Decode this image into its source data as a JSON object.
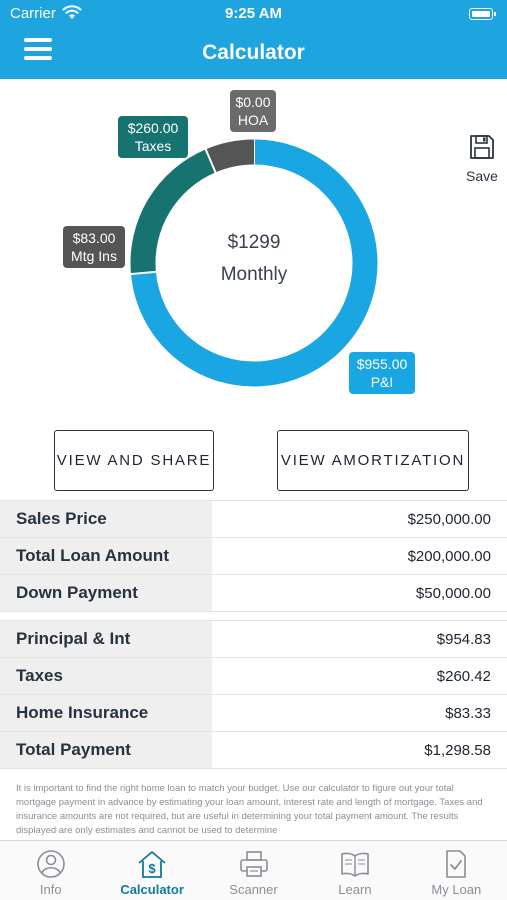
{
  "status": {
    "carrier": "Carrier",
    "time": "9:25 AM"
  },
  "nav": {
    "title": "Calculator"
  },
  "colors": {
    "header": "#1ea4df",
    "pi": "#1aa6e2",
    "taxes": "#16736f",
    "mtg_ins": "#555555",
    "hoa": "#6b6b6b"
  },
  "chart_data": {
    "type": "pie",
    "categories": [
      "P&I",
      "HOA",
      "Taxes",
      "Mtg Ins"
    ],
    "values": [
      955.0,
      0.0,
      260.0,
      83.0
    ],
    "labels": [
      "$955.00",
      "$0.00",
      "$260.00",
      "$83.00"
    ],
    "center": {
      "amount": "$1299",
      "label": "Monthly"
    }
  },
  "tags": {
    "hoa": {
      "amount": "$0.00",
      "name": "HOA"
    },
    "taxes": {
      "amount": "$260.00",
      "name": "Taxes"
    },
    "mtg": {
      "amount": "$83.00",
      "name": "Mtg Ins"
    },
    "pi": {
      "amount": "$955.00",
      "name": "P&I"
    }
  },
  "save": {
    "label": "Save",
    "icon": "floppy-disk-icon"
  },
  "buttons": {
    "share": "VIEW AND SHARE",
    "amortization": "VIEW AMORTIZATION"
  },
  "loan_table": [
    {
      "label": "Sales Price",
      "value": "$250,000.00"
    },
    {
      "label": "Total Loan Amount",
      "value": "$200,000.00"
    },
    {
      "label": "Down Payment",
      "value": "$50,000.00"
    }
  ],
  "payment_table": [
    {
      "label": "Principal & Int",
      "value": "$954.83"
    },
    {
      "label": "Taxes",
      "value": "$260.42"
    },
    {
      "label": "Home Insurance",
      "value": "$83.33"
    },
    {
      "label": "Total Payment",
      "value": "$1,298.58"
    }
  ],
  "disclaimer": "It is important to find the right home loan to match your budget. Use our calculator to figure out your total mortgage payment in advance by estimating your loan amount, interest rate and length of mortgage. Taxes and insurance amounts are not required, but are useful in determining your total payment amount. The results displayed are only estimates and cannot be used to determine",
  "tabs": [
    {
      "label": "Info",
      "icon": "person-info-icon"
    },
    {
      "label": "Calculator",
      "icon": "house-dollar-icon"
    },
    {
      "label": "Scanner",
      "icon": "printer-icon"
    },
    {
      "label": "Learn",
      "icon": "open-book-icon"
    },
    {
      "label": "My Loan",
      "icon": "document-check-icon"
    }
  ]
}
